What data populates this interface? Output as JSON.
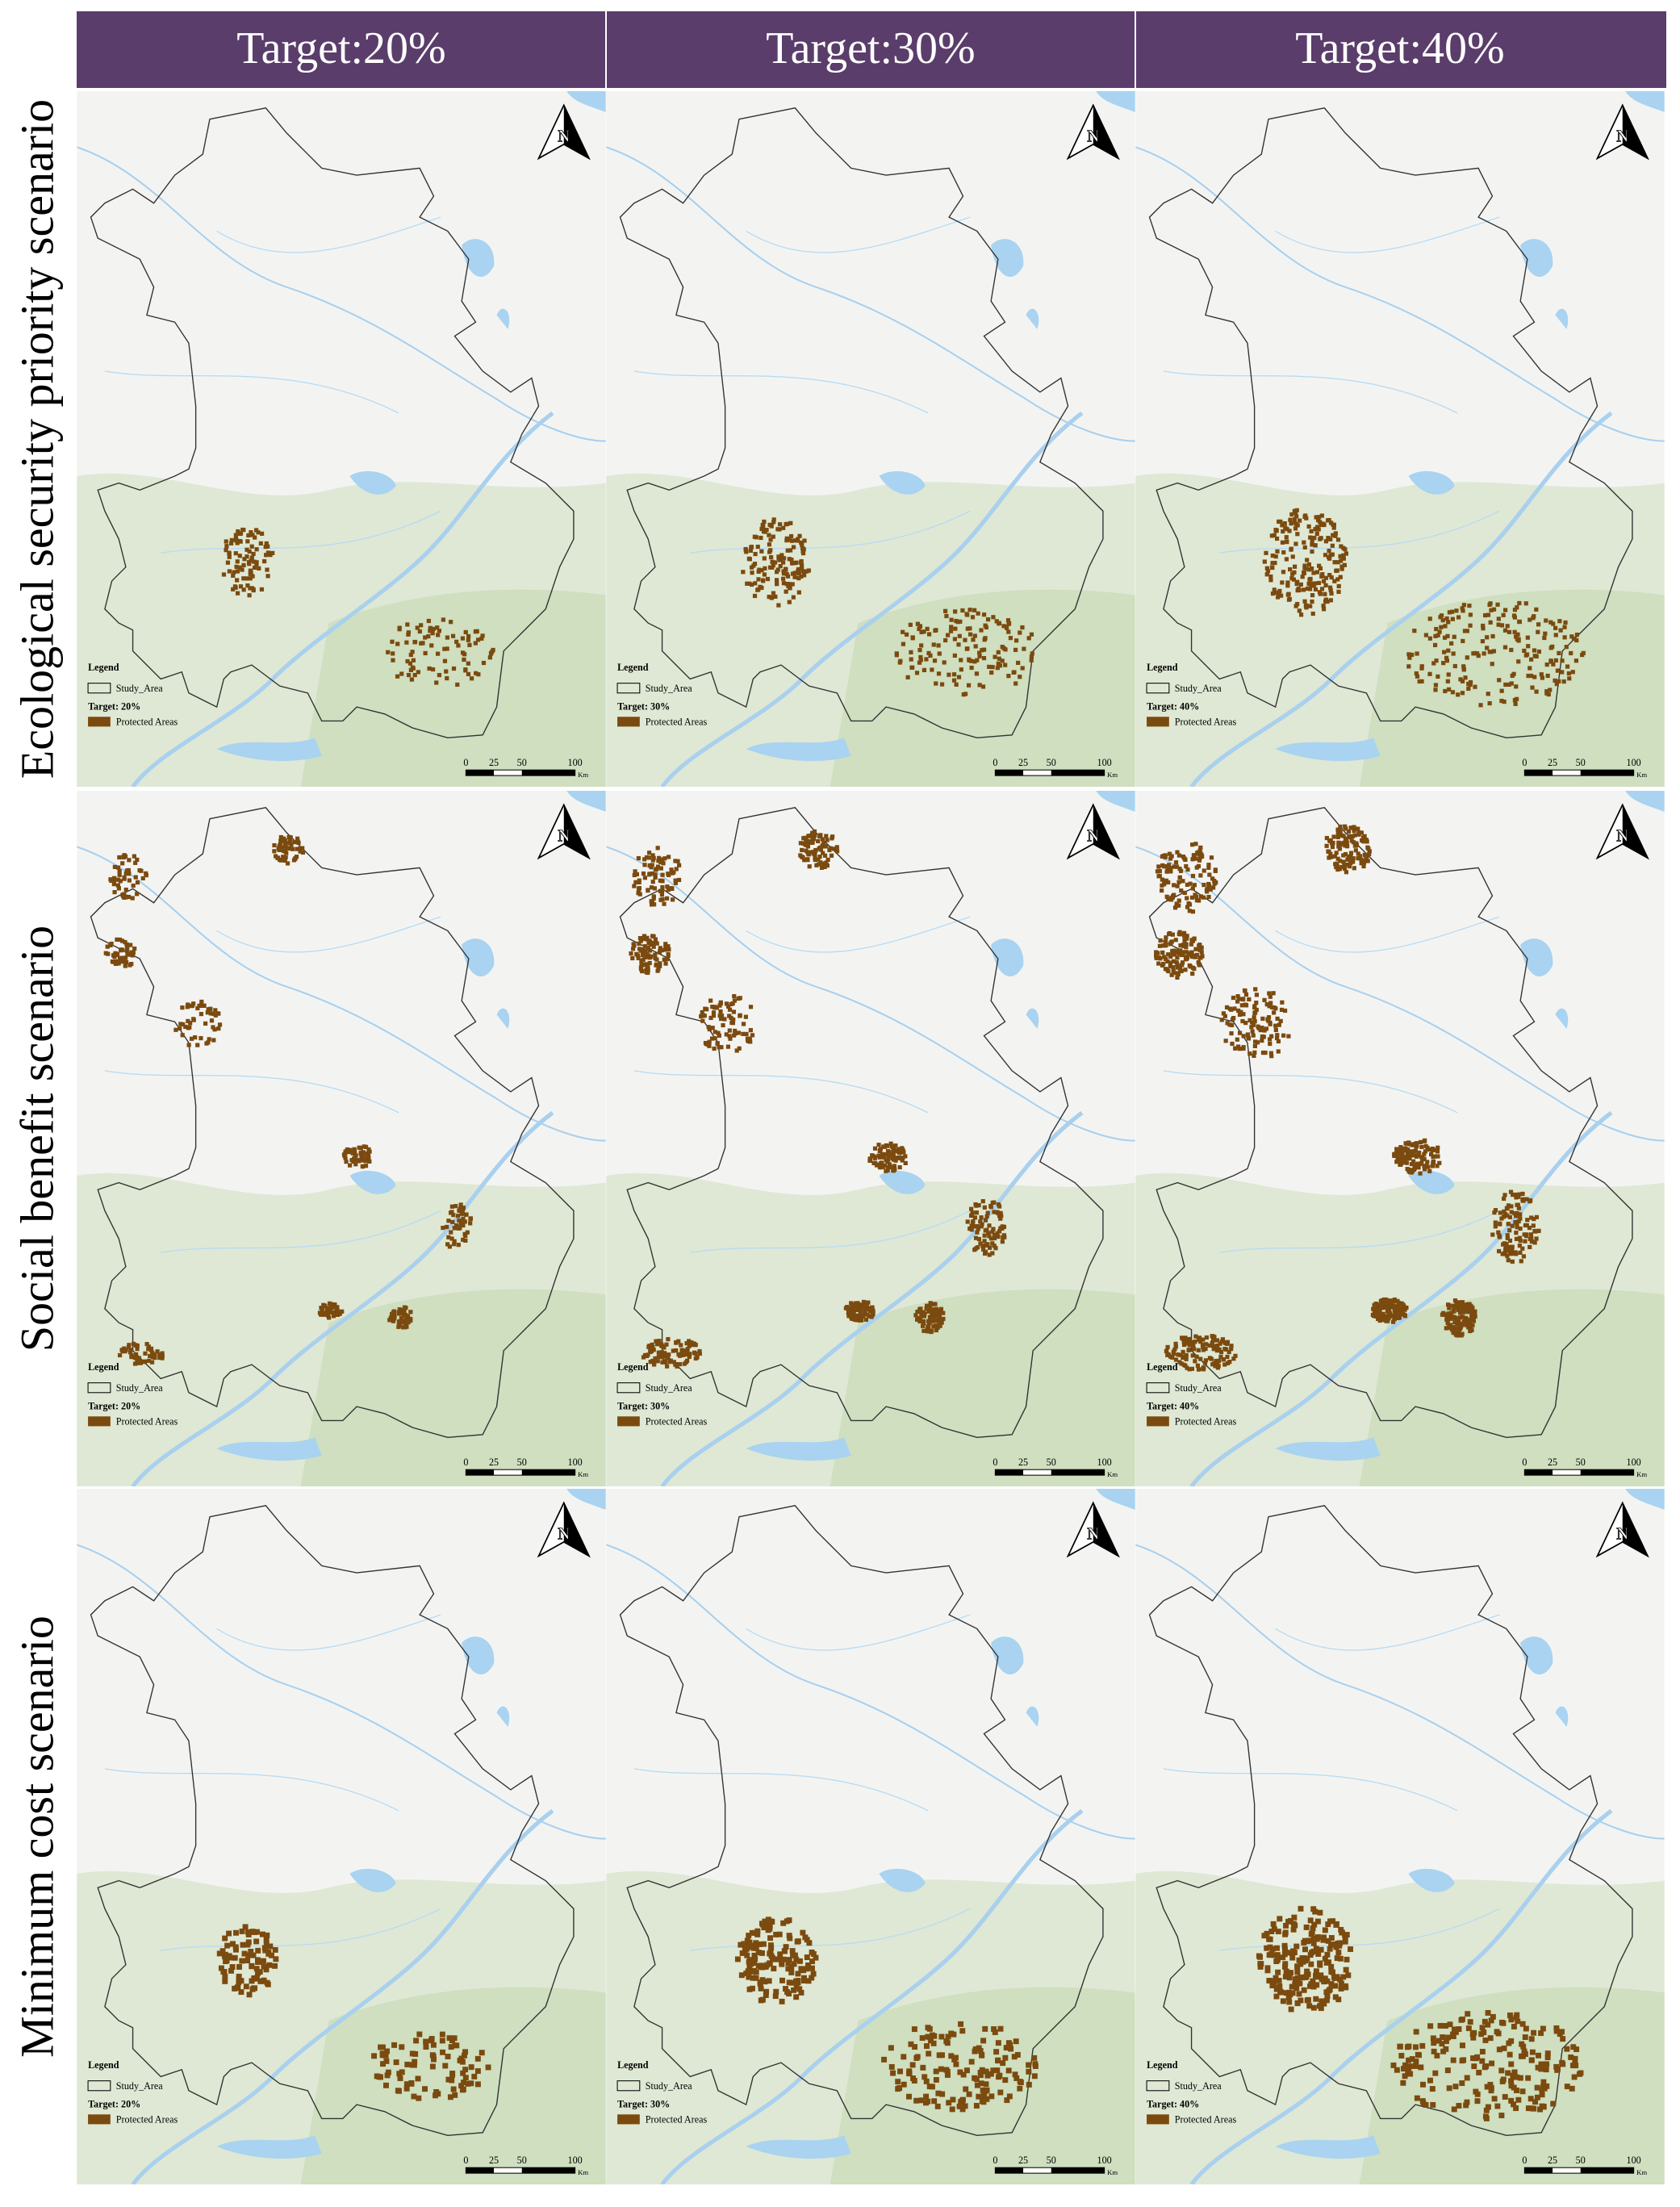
{
  "header": {
    "columns": [
      "Target:20%",
      "Target:30%",
      "Target:40%"
    ]
  },
  "rows": [
    "Ecological security priority scenario",
    "Social benefit scenario",
    "Minimum cost scenario"
  ],
  "legend": {
    "title": "Legend",
    "study_area": "Study_Area",
    "targets": [
      "Target:  20%",
      "Target:  30%",
      "Target:  40%"
    ],
    "protected": "Protected Areas"
  },
  "scale_bar": {
    "labels": [
      "0",
      "25",
      "50",
      "100"
    ],
    "unit": "Km"
  },
  "north_arrow": "N"
}
